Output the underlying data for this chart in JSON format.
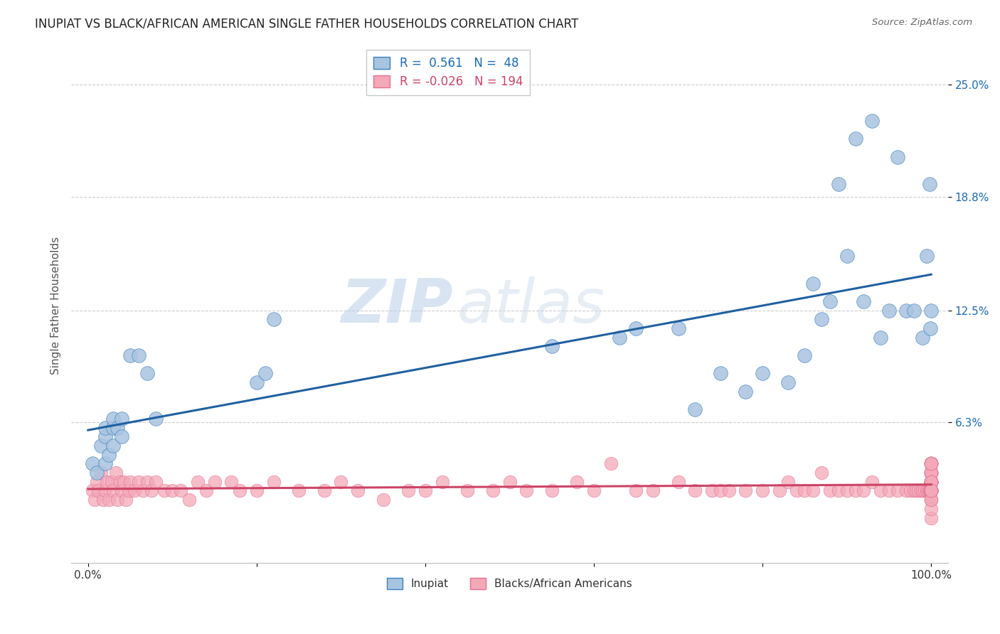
{
  "title": "INUPIAT VS BLACK/AFRICAN AMERICAN SINGLE FATHER HOUSEHOLDS CORRELATION CHART",
  "source": "Source: ZipAtlas.com",
  "ylabel_label": "Single Father Households",
  "ytick_labels": [
    "6.3%",
    "12.5%",
    "18.8%",
    "25.0%"
  ],
  "ytick_values": [
    0.063,
    0.125,
    0.188,
    0.25
  ],
  "xlim": [
    -0.02,
    1.02
  ],
  "ylim": [
    -0.015,
    0.27
  ],
  "inupiat_color": "#a8c4e0",
  "inupiat_edge_color": "#3a7fc1",
  "inupiat_line_color": "#2060a0",
  "black_color": "#f4a8b8",
  "black_edge_color": "#e07090",
  "black_line_color": "#cc4466",
  "watermark_zip": "ZIP",
  "watermark_atlas": "atlas",
  "inupiat_x": [
    0.005,
    0.01,
    0.015,
    0.02,
    0.02,
    0.02,
    0.025,
    0.03,
    0.03,
    0.03,
    0.035,
    0.04,
    0.04,
    0.05,
    0.06,
    0.07,
    0.08,
    0.2,
    0.21,
    0.22,
    0.55,
    0.63,
    0.65,
    0.7,
    0.72,
    0.75,
    0.78,
    0.8,
    0.83,
    0.85,
    0.86,
    0.87,
    0.88,
    0.89,
    0.9,
    0.91,
    0.92,
    0.93,
    0.94,
    0.95,
    0.96,
    0.97,
    0.98,
    0.99,
    0.995,
    0.998,
    0.999,
    1.0
  ],
  "inupiat_y": [
    0.04,
    0.035,
    0.05,
    0.04,
    0.055,
    0.06,
    0.045,
    0.05,
    0.06,
    0.065,
    0.06,
    0.055,
    0.065,
    0.1,
    0.1,
    0.09,
    0.065,
    0.085,
    0.09,
    0.12,
    0.105,
    0.11,
    0.115,
    0.115,
    0.07,
    0.09,
    0.08,
    0.09,
    0.085,
    0.1,
    0.14,
    0.12,
    0.13,
    0.195,
    0.155,
    0.22,
    0.13,
    0.23,
    0.11,
    0.125,
    0.21,
    0.125,
    0.125,
    0.11,
    0.155,
    0.195,
    0.115,
    0.125
  ],
  "black_x": [
    0.005,
    0.008,
    0.01,
    0.012,
    0.015,
    0.018,
    0.02,
    0.022,
    0.025,
    0.028,
    0.03,
    0.033,
    0.035,
    0.038,
    0.04,
    0.042,
    0.045,
    0.048,
    0.05,
    0.055,
    0.06,
    0.065,
    0.07,
    0.075,
    0.08,
    0.09,
    0.1,
    0.11,
    0.12,
    0.13,
    0.14,
    0.15,
    0.17,
    0.18,
    0.2,
    0.22,
    0.25,
    0.28,
    0.3,
    0.32,
    0.35,
    0.38,
    0.4,
    0.42,
    0.45,
    0.48,
    0.5,
    0.52,
    0.55,
    0.58,
    0.6,
    0.62,
    0.65,
    0.67,
    0.7,
    0.72,
    0.74,
    0.75,
    0.76,
    0.78,
    0.8,
    0.82,
    0.83,
    0.84,
    0.85,
    0.86,
    0.87,
    0.88,
    0.89,
    0.9,
    0.91,
    0.92,
    0.93,
    0.94,
    0.95,
    0.96,
    0.97,
    0.975,
    0.98,
    0.982,
    0.985,
    0.988,
    0.99,
    0.992,
    0.995,
    0.996,
    0.997,
    0.998,
    0.999,
    1.0,
    1.0,
    1.0,
    1.0,
    1.0,
    1.0,
    1.0,
    1.0,
    1.0,
    1.0,
    1.0,
    1.0,
    1.0,
    1.0,
    1.0,
    1.0,
    1.0,
    1.0,
    1.0,
    1.0,
    1.0,
    1.0,
    1.0,
    1.0,
    1.0,
    1.0,
    1.0,
    1.0,
    1.0,
    1.0,
    1.0,
    1.0,
    1.0,
    1.0,
    1.0,
    1.0,
    1.0,
    1.0,
    1.0,
    1.0,
    1.0,
    1.0,
    1.0,
    1.0,
    1.0,
    1.0,
    1.0,
    1.0,
    1.0,
    1.0,
    1.0,
    1.0,
    1.0,
    1.0,
    1.0,
    1.0,
    1.0,
    1.0,
    1.0,
    1.0,
    1.0,
    1.0,
    1.0,
    1.0,
    1.0,
    1.0,
    1.0,
    1.0,
    1.0,
    1.0,
    1.0,
    1.0,
    1.0,
    1.0,
    1.0,
    1.0,
    1.0,
    1.0,
    1.0,
    1.0,
    1.0,
    1.0,
    1.0,
    1.0,
    1.0,
    1.0,
    1.0,
    1.0,
    1.0,
    1.0,
    1.0,
    1.0,
    1.0,
    1.0,
    1.0,
    1.0
  ],
  "black_y": [
    0.025,
    0.02,
    0.03,
    0.025,
    0.035,
    0.02,
    0.025,
    0.03,
    0.02,
    0.03,
    0.025,
    0.035,
    0.02,
    0.03,
    0.025,
    0.03,
    0.02,
    0.025,
    0.03,
    0.025,
    0.03,
    0.025,
    0.03,
    0.025,
    0.03,
    0.025,
    0.025,
    0.025,
    0.02,
    0.03,
    0.025,
    0.03,
    0.03,
    0.025,
    0.025,
    0.03,
    0.025,
    0.025,
    0.03,
    0.025,
    0.02,
    0.025,
    0.025,
    0.03,
    0.025,
    0.025,
    0.03,
    0.025,
    0.025,
    0.03,
    0.025,
    0.04,
    0.025,
    0.025,
    0.03,
    0.025,
    0.025,
    0.025,
    0.025,
    0.025,
    0.025,
    0.025,
    0.03,
    0.025,
    0.025,
    0.025,
    0.035,
    0.025,
    0.025,
    0.025,
    0.025,
    0.025,
    0.03,
    0.025,
    0.025,
    0.025,
    0.025,
    0.025,
    0.025,
    0.025,
    0.025,
    0.025,
    0.025,
    0.025,
    0.025,
    0.025,
    0.025,
    0.025,
    0.025,
    0.025,
    0.03,
    0.025,
    0.04,
    0.03,
    0.025,
    0.03,
    0.025,
    0.04,
    0.035,
    0.025,
    0.025,
    0.03,
    0.03,
    0.035,
    0.025,
    0.04,
    0.025,
    0.035,
    0.03,
    0.025,
    0.025,
    0.03,
    0.025,
    0.04,
    0.03,
    0.035,
    0.04,
    0.025,
    0.04,
    0.025,
    0.03,
    0.035,
    0.025,
    0.03,
    0.04,
    0.025,
    0.03,
    0.035,
    0.025,
    0.04,
    0.02,
    0.03,
    0.025,
    0.035,
    0.03,
    0.025,
    0.025,
    0.03,
    0.025,
    0.035,
    0.025,
    0.04,
    0.025,
    0.03,
    0.025,
    0.04,
    0.035,
    0.025,
    0.025,
    0.025,
    0.03,
    0.03,
    0.025,
    0.035,
    0.025,
    0.03,
    0.04,
    0.025,
    0.025,
    0.025,
    0.03,
    0.025,
    0.04,
    0.04,
    0.025,
    0.02,
    0.03,
    0.025,
    0.03,
    0.025,
    0.035,
    0.025,
    0.03,
    0.04,
    0.025,
    0.025,
    0.025,
    0.01,
    0.025,
    0.04,
    0.015,
    0.03,
    0.02,
    0.025,
    0.025,
    0.03,
    0.025,
    0.035
  ]
}
